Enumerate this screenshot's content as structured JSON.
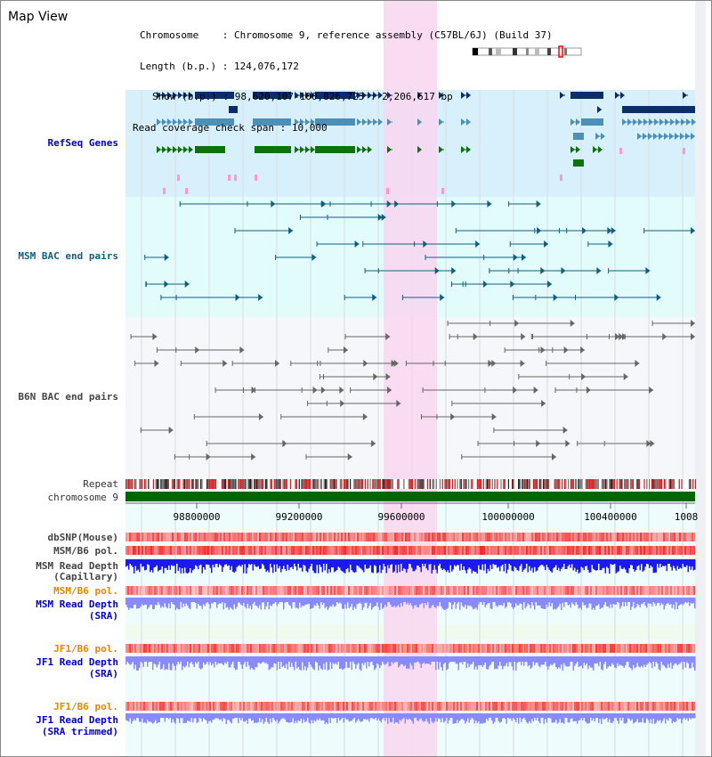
{
  "page": {
    "title": "Map View"
  },
  "header": {
    "chromosome_label": "Chromosome",
    "chromosome_value": "Chromosome 9, reference assembly (C57BL/6J) (Build 37)",
    "length_label": "Length (b.p.)",
    "length_value": "124,076,172",
    "show_label": "Show (b.p.)",
    "show_value": "98,620,107-100,826,723 : 2,206,617 bp",
    "span_label": "Read coverage check span",
    "span_value": "10,000"
  },
  "tracks": {
    "refseq": "RefSeq Genes",
    "msm_bac": "MSM BAC end pairs",
    "b6n_bac": "B6N BAC end pairs",
    "repeat": "Repeat",
    "chromosome": "chromosome 9",
    "dbsnp": "dbSNP(Mouse)",
    "msm_b6_pol": "MSM/B6 pol.",
    "msm_depth_cap_1": "MSM Read Depth",
    "msm_depth_cap_2": "(Capillary)",
    "msm_b6_pol_sra": "MSM/B6 pol.",
    "msm_depth_sra_1": "MSM Read Depth",
    "msm_depth_sra_2": "(SRA)",
    "jf1_b6_pol": "JF1/B6 pol.",
    "jf1_depth_1": "JF1 Read Depth",
    "jf1_depth_2": "(SRA)",
    "jf1_b6_pol_trim": "JF1/B6 pol.",
    "jf1_depth_trim_1": "JF1 Read Depth",
    "jf1_depth_trim_2": "(SRA trimmed)"
  },
  "axis": {
    "ticks": [
      "98800000",
      "99200000",
      "99600000",
      "100000000",
      "100400000",
      "1008"
    ]
  },
  "colors": {
    "highlight": "#f9d6f0",
    "refseq_bg": "#d8f0fb",
    "msm_bg": "#e2fbfb",
    "b6n_bg": "#f5f7fb",
    "chrom_green": "#006600",
    "navy": "#0c2d6b",
    "steel": "#4a90b8",
    "green": "#107010",
    "pink": "#ff99cc",
    "teal_line": "#0f5f7f",
    "gray_line": "#666666",
    "snp_red": "#ee2222",
    "depth_blue": "#1a1aee",
    "depth_light": "#8a8aff"
  }
}
